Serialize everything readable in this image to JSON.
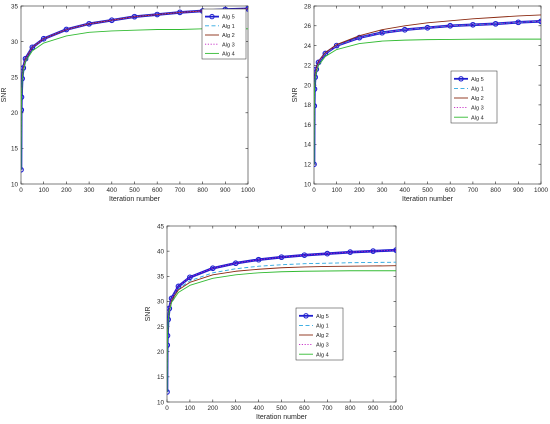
{
  "chart_data": [
    {
      "type": "line",
      "xlabel": "Iteration number",
      "ylabel": "SNR",
      "xlim": [
        0,
        1000
      ],
      "ylim": [
        10,
        35
      ],
      "xticks": [
        0,
        100,
        200,
        300,
        400,
        500,
        600,
        700,
        800,
        900,
        1000
      ],
      "yticks": [
        10,
        15,
        20,
        25,
        30,
        35
      ],
      "x_tick_labels": [
        "0",
        "100",
        "200",
        "300",
        "400",
        "500",
        "600",
        "700",
        "800",
        "900",
        "1000"
      ],
      "y_tick_labels": [
        "10",
        "15",
        "20",
        "25",
        "30",
        "35"
      ],
      "legend_position": "top-right",
      "grid": false,
      "series": [
        {
          "name": "Alg 5",
          "color": "#1f1fcf",
          "style": "solid-circles",
          "x": [
            0,
            1,
            2,
            5,
            10,
            20,
            50,
            100,
            200,
            300,
            400,
            500,
            600,
            700,
            800,
            900,
            1000
          ],
          "y": [
            12,
            20.4,
            22.2,
            24.8,
            26.3,
            27.6,
            29.2,
            30.4,
            31.7,
            32.5,
            33.0,
            33.5,
            33.8,
            34.1,
            34.3,
            34.5,
            34.6
          ]
        },
        {
          "name": "Alg 1",
          "color": "#2aa6e0",
          "style": "dashed",
          "x": [
            0,
            1,
            2,
            5,
            10,
            20,
            50,
            100,
            200,
            300,
            400,
            500,
            600,
            700,
            800,
            900,
            1000
          ],
          "y": [
            12,
            20.4,
            22.2,
            24.8,
            26.3,
            27.6,
            29.2,
            30.4,
            31.7,
            32.5,
            33.0,
            33.5,
            33.8,
            34.1,
            34.3,
            34.5,
            34.6
          ]
        },
        {
          "name": "Alg 2",
          "color": "#8b2a12",
          "style": "solid",
          "x": [
            0,
            1,
            2,
            5,
            10,
            20,
            50,
            100,
            200,
            300,
            400,
            500,
            600,
            700,
            800,
            900,
            1000
          ],
          "y": [
            12,
            20.4,
            22.2,
            24.8,
            26.3,
            27.6,
            29.2,
            30.4,
            31.7,
            32.5,
            33.0,
            33.5,
            33.8,
            34.1,
            34.3,
            34.5,
            34.6
          ]
        },
        {
          "name": "Alg 3",
          "color": "#c21fc2",
          "style": "dotted",
          "x": [
            0,
            1,
            2,
            5,
            10,
            20,
            50,
            100,
            200,
            300,
            400,
            500,
            600,
            700,
            800,
            900,
            1000
          ],
          "y": [
            12,
            20.4,
            22.2,
            24.8,
            26.3,
            27.6,
            29.2,
            30.4,
            31.7,
            32.5,
            33.0,
            33.5,
            33.8,
            34.1,
            34.3,
            34.5,
            34.6
          ]
        },
        {
          "name": "Alg 4",
          "color": "#33bb33",
          "style": "solid",
          "x": [
            0,
            1,
            2,
            5,
            10,
            20,
            50,
            100,
            200,
            300,
            400,
            500,
            600,
            700,
            800,
            900,
            1000
          ],
          "y": [
            12,
            20.4,
            22.1,
            24.5,
            25.9,
            27.2,
            28.7,
            29.8,
            30.8,
            31.3,
            31.5,
            31.6,
            31.7,
            31.7,
            31.8,
            31.8,
            31.8
          ]
        }
      ]
    },
    {
      "type": "line",
      "xlabel": "Iteration number",
      "ylabel": "SNR",
      "xlim": [
        0,
        1000
      ],
      "ylim": [
        10,
        28
      ],
      "xticks": [
        0,
        100,
        200,
        300,
        400,
        500,
        600,
        700,
        800,
        900,
        1000
      ],
      "yticks": [
        10,
        12,
        14,
        16,
        18,
        20,
        22,
        24,
        26,
        28
      ],
      "x_tick_labels": [
        "0",
        "100",
        "200",
        "300",
        "400",
        "500",
        "600",
        "700",
        "800",
        "900",
        "1000"
      ],
      "y_tick_labels": [
        "10",
        "12",
        "14",
        "16",
        "18",
        "20",
        "22",
        "24",
        "26",
        "28"
      ],
      "legend_position": "center-right",
      "grid": false,
      "series": [
        {
          "name": "Alg 5",
          "color": "#1f1fcf",
          "style": "solid-circles",
          "x": [
            0,
            1,
            2,
            5,
            10,
            20,
            50,
            100,
            200,
            300,
            400,
            500,
            600,
            700,
            800,
            900,
            1000
          ],
          "y": [
            12,
            17.9,
            19.6,
            20.8,
            21.6,
            22.3,
            23.2,
            24.0,
            24.8,
            25.3,
            25.6,
            25.8,
            26.0,
            26.1,
            26.2,
            26.35,
            26.45
          ]
        },
        {
          "name": "Alg 1",
          "color": "#2aa6e0",
          "style": "dashed",
          "x": [
            0,
            1,
            2,
            5,
            10,
            20,
            50,
            100,
            200,
            300,
            400,
            500,
            600,
            700,
            800,
            900,
            1000
          ],
          "y": [
            12,
            17.9,
            19.6,
            20.8,
            21.6,
            22.3,
            23.2,
            24.0,
            24.8,
            25.3,
            25.6,
            25.8,
            26.0,
            26.1,
            26.2,
            26.35,
            26.45
          ]
        },
        {
          "name": "Alg 2",
          "color": "#8b2a12",
          "style": "solid",
          "x": [
            0,
            1,
            2,
            5,
            10,
            20,
            50,
            100,
            200,
            300,
            400,
            500,
            600,
            700,
            800,
            900,
            1000
          ],
          "y": [
            12,
            17.9,
            19.6,
            20.9,
            21.7,
            22.4,
            23.3,
            24.1,
            25.0,
            25.6,
            26.0,
            26.3,
            26.5,
            26.7,
            26.85,
            27.0,
            27.1
          ]
        },
        {
          "name": "Alg 3",
          "color": "#c21fc2",
          "style": "dotted",
          "x": [
            0,
            1,
            2,
            5,
            10,
            20,
            50,
            100,
            200,
            300,
            400,
            500,
            600,
            700,
            800,
            900,
            1000
          ],
          "y": [
            12,
            17.9,
            19.6,
            20.8,
            21.6,
            22.3,
            23.2,
            24.0,
            24.8,
            25.3,
            25.6,
            25.8,
            26.0,
            26.1,
            26.2,
            26.35,
            26.45
          ]
        },
        {
          "name": "Alg 4",
          "color": "#33bb33",
          "style": "solid",
          "x": [
            0,
            1,
            2,
            5,
            10,
            20,
            50,
            100,
            200,
            300,
            400,
            500,
            600,
            700,
            800,
            900,
            1000
          ],
          "y": [
            12,
            17.9,
            19.5,
            20.6,
            21.3,
            22.0,
            22.9,
            23.6,
            24.2,
            24.45,
            24.55,
            24.6,
            24.62,
            24.64,
            24.65,
            24.65,
            24.65
          ]
        }
      ]
    },
    {
      "type": "line",
      "xlabel": "Iteration number",
      "ylabel": "SNR",
      "xlim": [
        0,
        1000
      ],
      "ylim": [
        10,
        45
      ],
      "xticks": [
        0,
        100,
        200,
        300,
        400,
        500,
        600,
        700,
        800,
        900,
        1000
      ],
      "yticks": [
        10,
        15,
        20,
        25,
        30,
        35,
        40,
        45
      ],
      "x_tick_labels": [
        "0",
        "100",
        "200",
        "300",
        "400",
        "500",
        "600",
        "700",
        "800",
        "900",
        "1000"
      ],
      "y_tick_labels": [
        "10",
        "15",
        "20",
        "25",
        "30",
        "35",
        "40",
        "45"
      ],
      "legend_position": "center-right",
      "grid": false,
      "series": [
        {
          "name": "Alg 5",
          "color": "#1f1fcf",
          "style": "solid-circles",
          "x": [
            0,
            1,
            2,
            5,
            10,
            20,
            50,
            100,
            200,
            300,
            400,
            500,
            600,
            700,
            800,
            900,
            1000
          ],
          "y": [
            12,
            21.3,
            23.2,
            26.4,
            28.6,
            30.6,
            33.0,
            34.8,
            36.6,
            37.6,
            38.3,
            38.8,
            39.2,
            39.5,
            39.8,
            40.0,
            40.2
          ]
        },
        {
          "name": "Alg 1",
          "color": "#2aa6e0",
          "style": "dashed",
          "x": [
            0,
            1,
            2,
            5,
            10,
            20,
            50,
            100,
            200,
            300,
            400,
            500,
            600,
            700,
            800,
            900,
            1000
          ],
          "y": [
            12,
            21.3,
            23.2,
            26.3,
            28.4,
            30.3,
            32.5,
            34.1,
            35.7,
            36.5,
            37.0,
            37.3,
            37.5,
            37.6,
            37.7,
            37.75,
            37.8
          ]
        },
        {
          "name": "Alg 2",
          "color": "#8b2a12",
          "style": "solid",
          "x": [
            0,
            1,
            2,
            5,
            10,
            20,
            50,
            100,
            200,
            300,
            400,
            500,
            600,
            700,
            800,
            900,
            1000
          ],
          "y": [
            12,
            21.3,
            23.2,
            26.3,
            28.3,
            30.2,
            32.3,
            33.8,
            35.3,
            36.0,
            36.4,
            36.7,
            36.85,
            36.95,
            37.0,
            37.05,
            37.1
          ]
        },
        {
          "name": "Alg 3",
          "color": "#c21fc2",
          "style": "dotted",
          "x": [
            0,
            1,
            2,
            5,
            10,
            20,
            50,
            100,
            200,
            300,
            400,
            500,
            600,
            700,
            800,
            900,
            1000
          ],
          "y": [
            12,
            21.3,
            23.2,
            26.4,
            28.6,
            30.6,
            33.0,
            34.8,
            36.6,
            37.6,
            38.3,
            38.8,
            39.2,
            39.5,
            39.8,
            40.0,
            40.2
          ]
        },
        {
          "name": "Alg 4",
          "color": "#33bb33",
          "style": "solid",
          "x": [
            0,
            1,
            2,
            5,
            10,
            20,
            50,
            100,
            200,
            300,
            400,
            500,
            600,
            700,
            800,
            900,
            1000
          ],
          "y": [
            12,
            21.3,
            23.1,
            26.1,
            28.0,
            29.8,
            31.8,
            33.2,
            34.6,
            35.3,
            35.7,
            35.9,
            36.0,
            36.05,
            36.1,
            36.1,
            36.1
          ]
        }
      ]
    }
  ]
}
